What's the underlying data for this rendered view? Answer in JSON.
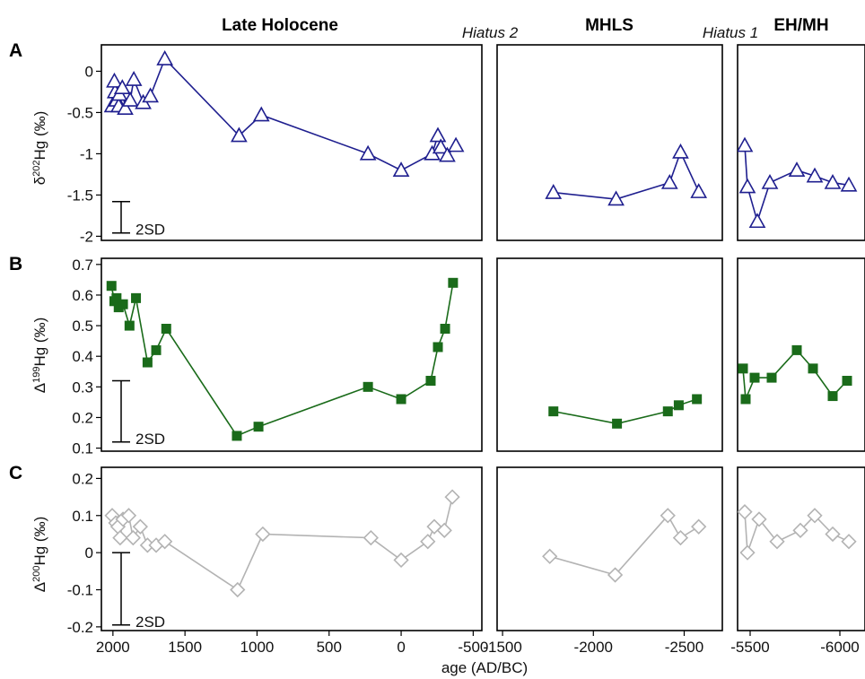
{
  "figure": {
    "periods": [
      "Late Holocene",
      "MHLS",
      "EH/MH"
    ],
    "hiatus_labels": [
      "Hiatus 2",
      "Hiatus 1"
    ],
    "row_letters": [
      "A",
      "B",
      "C"
    ],
    "x_axis_label": "age (AD/BC)",
    "sd_label": "2SD",
    "colors": {
      "A": "#1f1f8f",
      "B": "#1a6b1a",
      "C": "#b3b3b3",
      "frame": "#000000"
    }
  },
  "chart_data": {
    "type": "line",
    "x_unit": "age (AD/BC)",
    "x_segments": [
      {
        "name": "Late Holocene",
        "xlim": [
          2080,
          -560
        ],
        "ticks": [
          2000,
          1500,
          1000,
          500,
          0,
          -500
        ],
        "tick_labels": [
          "2000",
          "1500",
          "1000",
          "500",
          "0",
          "-500"
        ]
      },
      {
        "name": "MHLS",
        "xlim": [
          -1470,
          -2710
        ],
        "ticks": [
          -1500,
          -2000,
          -2500
        ],
        "tick_labels": [
          "-1500",
          "-2000",
          "-2500"
        ]
      },
      {
        "name": "EH/MH",
        "xlim": [
          -5430,
          -6140
        ],
        "ticks": [
          -5500,
          -6000
        ],
        "tick_labels": [
          "-5500",
          "-6000"
        ]
      }
    ],
    "rows": [
      {
        "letter": "A",
        "ylabel_prefix": "δ",
        "ylabel_sup": "202",
        "ylabel_suffix": "Hg (‰)",
        "ylim": [
          -2.05,
          0.32
        ],
        "yticks": [
          0,
          -0.5,
          -1,
          -1.5,
          -2
        ],
        "ytick_labels": [
          "0",
          "-0.5",
          "-1",
          "-1.5",
          "-2"
        ],
        "marker": "triangle",
        "color": "#1f1f8f",
        "sd_range": [
          -1.58,
          -1.96
        ],
        "series": [
          {
            "x": [
              2005,
              1985,
              1990,
              1975,
              1960,
              1955,
              1935,
              1915,
              1880,
              1855,
              1790,
              1740,
              1640,
              1125,
              970,
              230,
              0,
              -215,
              -255,
              -275,
              -320,
              -380
            ],
            "y": [
              -0.42,
              -0.25,
              -0.12,
              -0.35,
              -0.42,
              -0.28,
              -0.2,
              -0.45,
              -0.35,
              -0.1,
              -0.38,
              -0.3,
              0.15,
              -0.78,
              -0.53,
              -1.0,
              -1.2,
              -1.0,
              -0.78,
              -0.92,
              -1.02,
              -0.9
            ]
          },
          {
            "x": [
              -1780,
              -2125,
              -2420,
              -2480,
              -2580
            ],
            "y": [
              -1.47,
              -1.55,
              -1.35,
              -0.98,
              -1.46
            ]
          },
          {
            "x": [
              -5470,
              -5485,
              -5540,
              -5610,
              -5760,
              -5860,
              -5960,
              -6050
            ],
            "y": [
              -0.9,
              -1.4,
              -1.82,
              -1.35,
              -1.2,
              -1.27,
              -1.35,
              -1.38
            ]
          }
        ]
      },
      {
        "letter": "B",
        "ylabel_prefix": "Δ",
        "ylabel_sup": "199",
        "ylabel_suffix": "Hg (‰)",
        "ylim": [
          0.09,
          0.72
        ],
        "yticks": [
          0.7,
          0.6,
          0.5,
          0.4,
          0.3,
          0.2,
          0.1
        ],
        "ytick_labels": [
          "0.7",
          "0.6",
          "0.5",
          "0.4",
          "0.3",
          "0.2",
          "0.1"
        ],
        "marker": "square",
        "color": "#1a6b1a",
        "sd_range": [
          0.32,
          0.12
        ],
        "series": [
          {
            "x": [
              2010,
              1990,
              1975,
              1960,
              1930,
              1885,
              1840,
              1760,
              1700,
              1630,
              1140,
              990,
              230,
              0,
              -205,
              -255,
              -305,
              -360
            ],
            "y": [
              0.63,
              0.58,
              0.59,
              0.56,
              0.57,
              0.5,
              0.59,
              0.38,
              0.42,
              0.49,
              0.14,
              0.17,
              0.3,
              0.26,
              0.32,
              0.43,
              0.49,
              0.64
            ]
          },
          {
            "x": [
              -1780,
              -2130,
              -2410,
              -2470,
              -2570
            ],
            "y": [
              0.22,
              0.18,
              0.22,
              0.24,
              0.26
            ]
          },
          {
            "x": [
              -5460,
              -5475,
              -5525,
              -5620,
              -5760,
              -5850,
              -5960,
              -6040
            ],
            "y": [
              0.36,
              0.26,
              0.33,
              0.33,
              0.42,
              0.36,
              0.27,
              0.32
            ]
          }
        ]
      },
      {
        "letter": "C",
        "ylabel_prefix": "Δ",
        "ylabel_sup": "200",
        "ylabel_suffix": "Hg (‰)",
        "ylim": [
          -0.21,
          0.23
        ],
        "yticks": [
          0.2,
          0.1,
          0,
          -0.1,
          -0.2
        ],
        "ytick_labels": [
          "0.2",
          "0.1",
          "0",
          "-0.1",
          "-0.2"
        ],
        "marker": "diamond",
        "color": "#b3b3b3",
        "sd_range": [
          0.0,
          -0.195
        ],
        "series": [
          {
            "x": [
              2005,
              1980,
              1965,
              1950,
              1930,
              1890,
              1860,
              1810,
              1760,
              1700,
              1640,
              1135,
              960,
              210,
              0,
              -185,
              -230,
              -300,
              -355
            ],
            "y": [
              0.1,
              0.08,
              0.07,
              0.04,
              0.09,
              0.1,
              0.04,
              0.07,
              0.02,
              0.02,
              0.03,
              -0.1,
              0.05,
              0.04,
              -0.02,
              0.03,
              0.07,
              0.06,
              0.15
            ]
          },
          {
            "x": [
              -1760,
              -2120,
              -2410,
              -2480,
              -2580
            ],
            "y": [
              -0.01,
              -0.06,
              0.1,
              0.04,
              0.07
            ]
          },
          {
            "x": [
              -5470,
              -5485,
              -5550,
              -5650,
              -5780,
              -5860,
              -5960,
              -6050
            ],
            "y": [
              0.11,
              0.0,
              0.09,
              0.03,
              0.06,
              0.1,
              0.05,
              0.03
            ]
          }
        ]
      }
    ]
  }
}
